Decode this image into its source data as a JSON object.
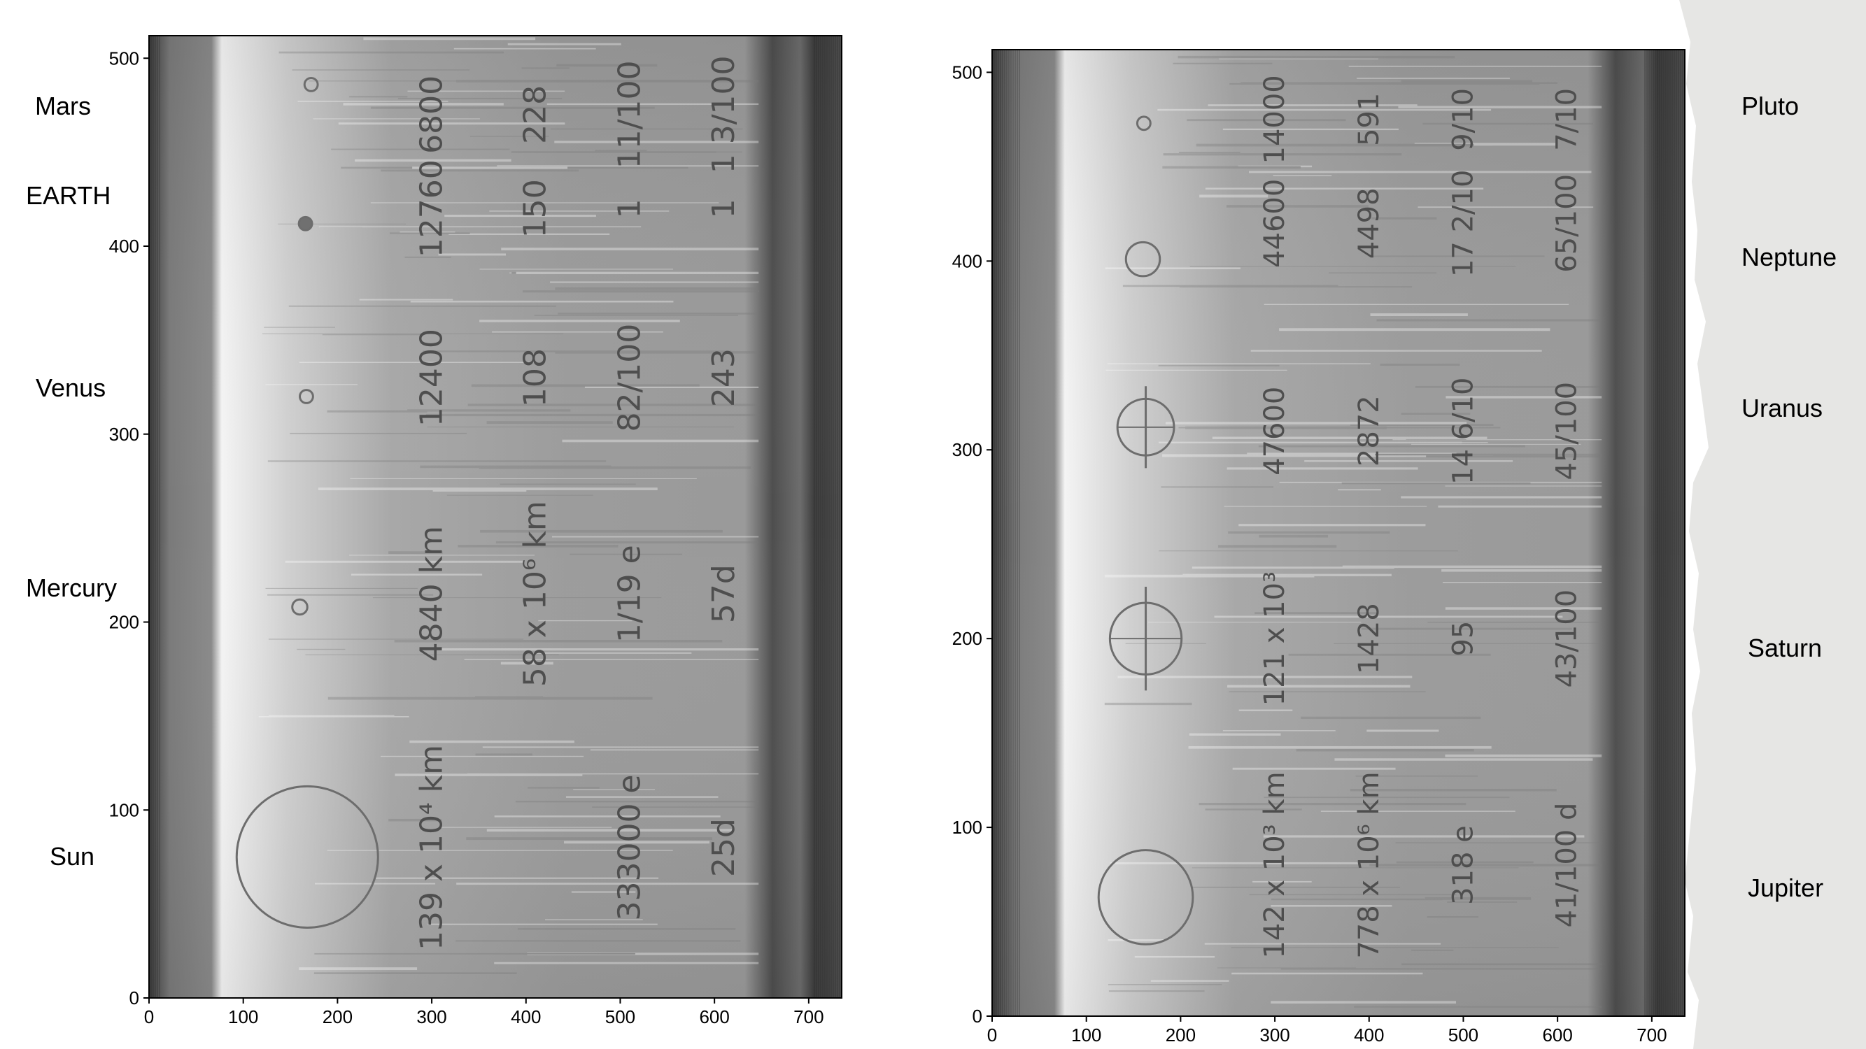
{
  "left_panel": {
    "labels": [
      "Mars",
      "EARTH",
      "Venus",
      "Mercury",
      "Sun"
    ],
    "x_ticks": [
      0,
      100,
      200,
      300,
      400,
      500,
      600,
      700
    ],
    "y_ticks": [
      0,
      100,
      200,
      300,
      400,
      500
    ],
    "xlim": [
      0,
      735
    ],
    "ylim": [
      0,
      512
    ],
    "rows": [
      {
        "name": "Sun",
        "diameter": "139 x 10⁴ km",
        "distance": "",
        "mass": "333000 e",
        "rotation": "25d"
      },
      {
        "name": "Mercury",
        "diameter": "4840 km",
        "distance": "58 x 10⁶ km",
        "mass": "1/19 e",
        "rotation": "57d"
      },
      {
        "name": "Venus",
        "diameter": "12400",
        "distance": "108",
        "mass": "82/100",
        "rotation": "243"
      },
      {
        "name": "EARTH",
        "diameter": "12760",
        "distance": "150",
        "mass": "1",
        "rotation": "1"
      },
      {
        "name": "Mars",
        "diameter": "6800",
        "distance": "228",
        "mass": "11/100",
        "rotation": "1 3/100"
      }
    ]
  },
  "right_panel": {
    "labels": [
      "Pluto",
      "Neptune",
      "Uranus",
      "Saturn",
      "Jupiter"
    ],
    "x_ticks": [
      0,
      100,
      200,
      300,
      400,
      500,
      600,
      700
    ],
    "y_ticks": [
      0,
      100,
      200,
      300,
      400,
      500
    ],
    "xlim": [
      0,
      735
    ],
    "ylim": [
      0,
      512
    ],
    "rows": [
      {
        "name": "Jupiter",
        "diameter": "142 x 10³ km",
        "distance": "778 x 10⁶ km",
        "mass": "318 e",
        "rotation": "41/100 d"
      },
      {
        "name": "Saturn",
        "diameter": "121 x 10³",
        "distance": "1428",
        "mass": "95",
        "rotation": "43/100"
      },
      {
        "name": "Uranus",
        "diameter": "47600",
        "distance": "2872",
        "mass": "14 6/10",
        "rotation": "45/100"
      },
      {
        "name": "Neptune",
        "diameter": "44600",
        "distance": "4498",
        "mass": "17 2/10",
        "rotation": "65/100"
      },
      {
        "name": "Pluto",
        "diameter": "14000",
        "distance": "591",
        "mass": "9/10",
        "rotation": "7/10"
      }
    ]
  },
  "colors": {
    "scan_background": "#9a9a9a",
    "scan_light_band": "#d9d9d9",
    "scan_dark_edge": "#4a4a4a",
    "torn_paper": "#e6e6e4"
  }
}
